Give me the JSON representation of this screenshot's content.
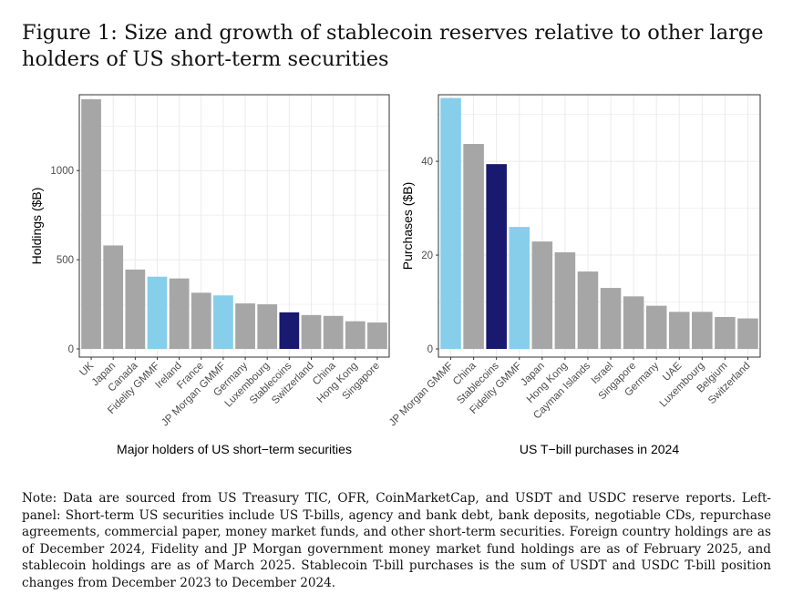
{
  "figure": {
    "title": "Figure 1: Size and growth of stablecoin reserves relative to other large holders of US short-term securities",
    "note": "Note: Data are sourced from US Treasury TIC, OFR, CoinMarketCap, and USDT and USDC reserve reports. Left-panel: Short-term US securities include US T-bills, agency and bank debt, bank deposits, negotiable CDs, repurchase agreements, commercial paper, money market funds, and other short-term securities. Foreign country holdings are as of December 2024, Fidelity and JP Morgan government money market fund holdings are as of February 2025, and stablecoin holdings are as of March 2025. Stablecoin T-bill purchases is the sum of USDT and USDC T-bill position changes from December 2023 to December 2024."
  },
  "colors": {
    "country": "#a6a6a6",
    "mmf": "#87ceeb",
    "stablecoin": "#191970",
    "grid": "#ebebeb",
    "axis": "#333333"
  },
  "chart_data": [
    {
      "type": "bar",
      "title": "",
      "xlabel": "Major holders of US short−term securities",
      "ylabel": "Holdings ($B)",
      "ylim": [
        0,
        1420
      ],
      "yticks": [
        0,
        500,
        1000
      ],
      "grid": true,
      "categories": [
        "UK",
        "Japan",
        "Canada",
        "Fidelity GMMF",
        "Ireland",
        "France",
        "JP Morgan GMMF",
        "Germany",
        "Luxembourg",
        "Stablecoins",
        "Switzerland",
        "China",
        "Hong Kong",
        "Singapore"
      ],
      "values": [
        1400,
        580,
        445,
        405,
        395,
        315,
        300,
        255,
        250,
        205,
        190,
        185,
        155,
        148
      ],
      "groups": [
        "country",
        "country",
        "country",
        "mmf",
        "country",
        "country",
        "mmf",
        "country",
        "country",
        "stablecoin",
        "country",
        "country",
        "country",
        "country"
      ]
    },
    {
      "type": "bar",
      "title": "",
      "xlabel": "US T−bill purchases in 2024",
      "ylabel": "Purchases ($B)",
      "ylim": [
        0,
        54
      ],
      "yticks": [
        0,
        20,
        40
      ],
      "grid": true,
      "categories": [
        "JP Morgan GMMF",
        "China",
        "Stablecoins",
        "Fidelity GMMF",
        "Japan",
        "Hong Kong",
        "Cayman Islands",
        "Israel",
        "Singapore",
        "Germany",
        "UAE",
        "Luxembourg",
        "Belgium",
        "Switzerland"
      ],
      "values": [
        53.5,
        43.7,
        39.4,
        26,
        22.9,
        20.6,
        16.5,
        13,
        11.2,
        9.2,
        7.9,
        7.9,
        6.8,
        6.5
      ],
      "groups": [
        "mmf",
        "country",
        "stablecoin",
        "mmf",
        "country",
        "country",
        "country",
        "country",
        "country",
        "country",
        "country",
        "country",
        "country",
        "country"
      ]
    }
  ]
}
